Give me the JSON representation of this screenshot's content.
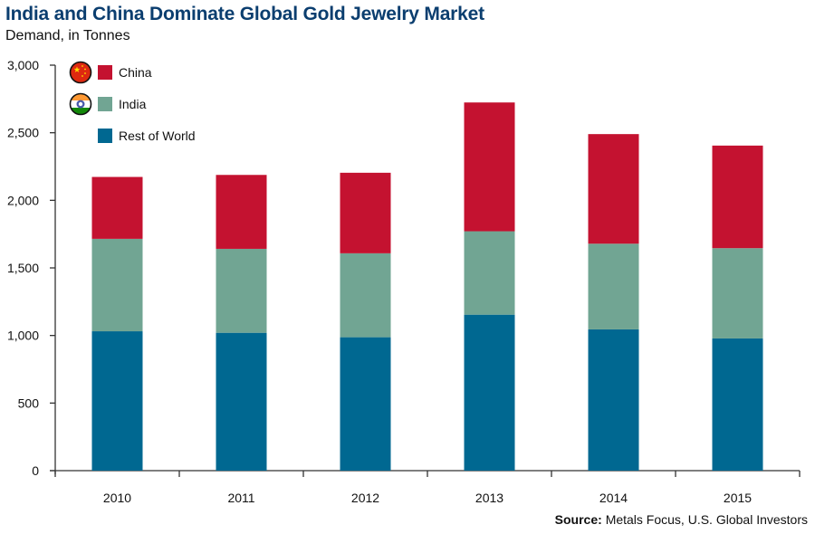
{
  "chart_data": {
    "type": "bar",
    "stacked": true,
    "title": "India and China Dominate Global Gold Jewelry Market",
    "subtitle": "Demand, in Tonnes",
    "xlabel": "",
    "ylabel": "",
    "ylim": [
      0,
      3000
    ],
    "yticks": [
      0,
      500,
      1000,
      1500,
      2000,
      2500,
      3000
    ],
    "ytick_labels": [
      "0",
      "500",
      "1,000",
      "1,500",
      "2,000",
      "2,500",
      "3,000"
    ],
    "grid": false,
    "legend_position": "top-left",
    "categories": [
      "2010",
      "2011",
      "2012",
      "2013",
      "2014",
      "2015"
    ],
    "series": [
      {
        "name": "Rest of World",
        "color": "#006891",
        "values": [
          1031,
          1020,
          987,
          1154,
          1045,
          978
        ]
      },
      {
        "name": "India",
        "color": "#71a593",
        "values": [
          684,
          621,
          621,
          617,
          634,
          668
        ]
      },
      {
        "name": "China",
        "color": "#c41230",
        "values": [
          458,
          547,
          596,
          953,
          811,
          759
        ]
      }
    ],
    "legend": [
      {
        "name": "China",
        "color": "#c41230",
        "icon": "china-flag-icon"
      },
      {
        "name": "India",
        "color": "#71a593",
        "icon": "india-flag-icon"
      },
      {
        "name": "Rest of World",
        "color": "#006891",
        "icon": ""
      }
    ],
    "source_label": "Source:",
    "source_text": "Metals Focus, U.S. Global Investors"
  }
}
